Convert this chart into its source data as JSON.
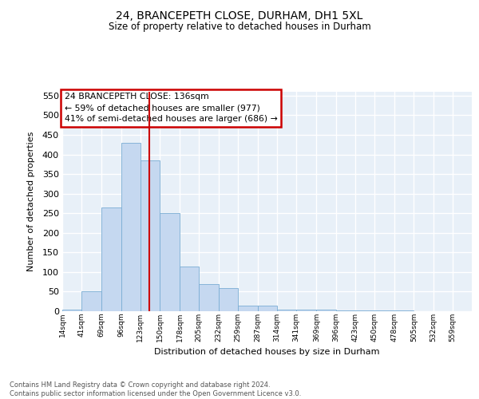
{
  "title1": "24, BRANCEPETH CLOSE, DURHAM, DH1 5XL",
  "title2": "Size of property relative to detached houses in Durham",
  "xlabel": "Distribution of detached houses by size in Durham",
  "ylabel": "Number of detached properties",
  "bar_values": [
    5,
    50,
    265,
    430,
    385,
    250,
    115,
    70,
    60,
    15,
    15,
    5,
    5,
    5,
    2,
    2,
    2,
    2,
    0,
    0
  ],
  "bin_labels": [
    "14sqm",
    "41sqm",
    "69sqm",
    "96sqm",
    "123sqm",
    "150sqm",
    "178sqm",
    "205sqm",
    "232sqm",
    "259sqm",
    "287sqm",
    "314sqm",
    "341sqm",
    "369sqm",
    "396sqm",
    "423sqm",
    "450sqm",
    "478sqm",
    "505sqm",
    "532sqm",
    "559sqm"
  ],
  "bar_color": "#c5d8f0",
  "bar_edge_color": "#7aadd4",
  "vline_x": 136,
  "vline_color": "#cc0000",
  "bin_edges": [
    14,
    41,
    69,
    96,
    123,
    150,
    178,
    205,
    232,
    259,
    287,
    314,
    341,
    369,
    396,
    423,
    450,
    478,
    505,
    532,
    559
  ],
  "annotation_text": "24 BRANCEPETH CLOSE: 136sqm\n← 59% of detached houses are smaller (977)\n41% of semi-detached houses are larger (686) →",
  "annotation_box_color": "#ffffff",
  "annotation_box_edge_color": "#cc0000",
  "ylim": [
    0,
    560
  ],
  "yticks": [
    0,
    50,
    100,
    150,
    200,
    250,
    300,
    350,
    400,
    450,
    500,
    550
  ],
  "footer_text": "Contains HM Land Registry data © Crown copyright and database right 2024.\nContains public sector information licensed under the Open Government Licence v3.0.",
  "background_color": "#e8f0f8",
  "grid_color": "#ffffff",
  "fig_bg": "#ffffff"
}
